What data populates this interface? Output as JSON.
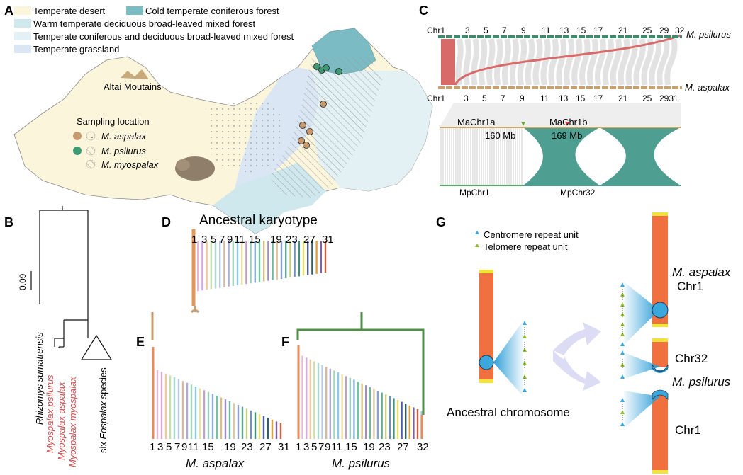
{
  "panels": {
    "a": "A",
    "b": "B",
    "c": "C",
    "d": "D",
    "e": "E",
    "f": "F",
    "g": "G"
  },
  "map": {
    "legend": {
      "temperate_desert": "Temperate desert",
      "cold_forest": "Cold temperate coniferous forest",
      "warm_mixed": "Warm temperate deciduous broad-leaved mixed forest",
      "conif_mixed": "Temperate coniferous and deciduous broad-leaved mixed forest",
      "grassland": "Temperate grassland"
    },
    "altai": "Altai Moutains",
    "sampling_title": "Sampling location",
    "species": [
      "M. aspalax",
      "M. psilurus",
      "M. myospalax"
    ],
    "colors": {
      "desert": "#fbf5dc",
      "cold": "#7bbcc4",
      "warm": "#cfe8ee",
      "conif": "#e3f1f4",
      "grass": "#dbe6f4",
      "aspalax": "#c99a6d",
      "psilurus": "#3e9a72"
    }
  },
  "tree": {
    "scale": "0.09",
    "taxa": [
      "Rhizomys sumatrensis",
      "Myospalax psilurus",
      "Myospalax aspalax",
      "Myospalax myospalax"
    ],
    "collapsed_prefix": "six",
    "collapsed_genus": "Eospalax",
    "collapsed_suffix": "species"
  },
  "synteny": {
    "top_labels": [
      "Chr1",
      "3",
      "5",
      "7",
      "9",
      "11",
      "13",
      "15",
      "17",
      "21",
      "25",
      "29",
      "32"
    ],
    "bottom_labels": [
      "Chr1",
      "3",
      "5",
      "7",
      "9",
      "11",
      "13",
      "15",
      "17",
      "21",
      "25",
      "2931"
    ],
    "top_species": "M. psilurus",
    "bottom_species": "M. aspalax",
    "ma1a": "MaChr1a",
    "ma1b": "MaChr1b",
    "pos1": "160 Mb",
    "pos2": "169 Mb",
    "mp1": "MpChr1",
    "mp32": "MpChr32"
  },
  "karyotype": {
    "title": "Ancestral karyotype",
    "labels": [
      "1",
      "3",
      "5",
      "7",
      "9",
      "11",
      "15",
      "19",
      "23",
      "27",
      "31"
    ],
    "e_labels": [
      "1",
      "3",
      "5",
      "7",
      "9",
      "11",
      "15",
      "19",
      "23",
      "27",
      "31"
    ],
    "f_labels": [
      "1",
      "3",
      "5",
      "7",
      "9",
      "11",
      "15",
      "19",
      "23",
      "27",
      "32"
    ],
    "e_species": "M. aspalax",
    "f_species": "M. psilurus"
  },
  "model": {
    "centromere": "Centromere repeat unit",
    "telomere": "Telomere  repeat unit",
    "ancestral": "Ancestral chromosome",
    "asp_species": "M. aspalax",
    "asp_chr": "Chr1",
    "chr32": "Chr32",
    "psi_species": "M. psilurus",
    "chr1": "Chr1",
    "colors": {
      "chrom": "#f07040",
      "telo": "#f3e33a",
      "cen": "#3aa8dc",
      "tel_unit": "#8cbf2a"
    }
  }
}
